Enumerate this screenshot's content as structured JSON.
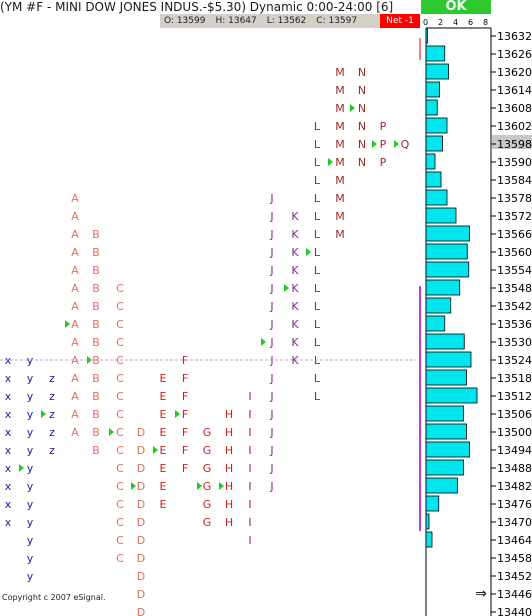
{
  "title": "(YM #F - MINI DOW JONES INDUS.-$5.30) Dynamic 0:00-24:00 [6]",
  "ohlc": {
    "open": "O: 13599",
    "high": "H: 13647",
    "low": "L: 13562",
    "close": "C: 13597"
  },
  "net": "Net -1",
  "ok_label": "OK",
  "copyright": "Copyright c 2007 eSignal.",
  "colors": {
    "background": "#ffffff",
    "volume_bar": "#00e5ee",
    "value_area_line": "#c040c0",
    "arrow": "#1fcc1f",
    "marker": "#ff0000",
    "net_bg": "#ff0000",
    "ok_bg": "#2ec92e"
  },
  "chart_data": {
    "type": "bar",
    "title": "",
    "price_axis": [
      "13632",
      "13626",
      "13620",
      "13614",
      "13608",
      "13602",
      "13598",
      "13590",
      "13584",
      "13578",
      "13572",
      "13566",
      "13560",
      "13554",
      "13548",
      "13542",
      "13536",
      "13530",
      "13524",
      "13518",
      "13512",
      "13506",
      "13500",
      "13494",
      "13488",
      "13482",
      "13476",
      "13470",
      "13464",
      "13458",
      "13452",
      "13446",
      "13440"
    ],
    "highlighted_price": "13598",
    "volume_ticks": [
      "0",
      "2",
      "4",
      "6",
      "8"
    ],
    "volume_range": [
      0,
      8
    ],
    "volume_values": [
      0.2,
      2.5,
      3,
      1.8,
      1.5,
      2.8,
      2.2,
      1.2,
      2,
      2.8,
      4,
      5.8,
      5.5,
      5.7,
      4.5,
      3.3,
      2.5,
      5.1,
      6,
      5.4,
      6.8,
      5,
      5.4,
      5.8,
      5,
      4.2,
      1.7,
      0.4,
      0.8,
      0
    ],
    "value_area": [
      "13548",
      "13467"
    ],
    "current_price_line": "13524",
    "profile": {
      "x": [
        "x",
        "x",
        "x",
        "x",
        "x",
        "x",
        "x",
        "x",
        "x",
        "x"
      ],
      "y": [
        "y",
        "y",
        "y",
        "y",
        "y",
        "y",
        "y",
        "y",
        "y",
        "y",
        "y",
        "y",
        "y"
      ],
      "z": [
        "z",
        "z",
        "z",
        "z",
        "z"
      ],
      "A": [
        "A",
        "A",
        "A",
        "A",
        "A",
        "A",
        "A",
        "A",
        "A",
        "A",
        "A",
        "A",
        "A",
        "A"
      ],
      "B": [
        "B",
        "B",
        "B",
        "B",
        "B",
        "B",
        "B",
        "B",
        "B",
        "B",
        "B",
        "B",
        "B"
      ],
      "C": [
        "C",
        "C",
        "C",
        "C",
        "C",
        "C",
        "C",
        "C",
        "C",
        "C",
        "C",
        "C",
        "C",
        "C",
        "C",
        "C"
      ],
      "D": [
        "D",
        "D",
        "D",
        "D",
        "D",
        "D",
        "D",
        "D",
        "D",
        "D",
        "D"
      ],
      "E": [
        "E",
        "E",
        "E",
        "E",
        "E",
        "E",
        "E",
        "E"
      ],
      "F": [
        "F",
        "F",
        "F",
        "F",
        "F",
        "F",
        "F"
      ],
      "G": [
        "G",
        "G",
        "G",
        "G",
        "G",
        "G"
      ],
      "H": [
        "H",
        "H",
        "H",
        "H",
        "H",
        "H",
        "H"
      ],
      "I": [
        "I",
        "I",
        "I",
        "I",
        "I",
        "I",
        "I",
        "I",
        "I"
      ],
      "J": [
        "J",
        "J",
        "J",
        "J",
        "J",
        "J",
        "J",
        "J",
        "J",
        "J",
        "J",
        "J",
        "J",
        "J",
        "J",
        "J",
        "J"
      ],
      "K": [
        "K",
        "K",
        "K",
        "K",
        "K",
        "K",
        "K",
        "K",
        "K"
      ],
      "L": [
        "L",
        "L",
        "L",
        "L",
        "L",
        "L",
        "L",
        "L",
        "L",
        "L",
        "L",
        "L",
        "L",
        "L",
        "L",
        "L"
      ],
      "M": [
        "M",
        "M",
        "M",
        "M",
        "M",
        "M",
        "M",
        "M",
        "M",
        "M"
      ],
      "N": [
        "N",
        "N",
        "N",
        "N",
        "N",
        "N"
      ],
      "P": [
        "P",
        "P",
        "P"
      ],
      "Q": [
        "Q"
      ]
    }
  }
}
